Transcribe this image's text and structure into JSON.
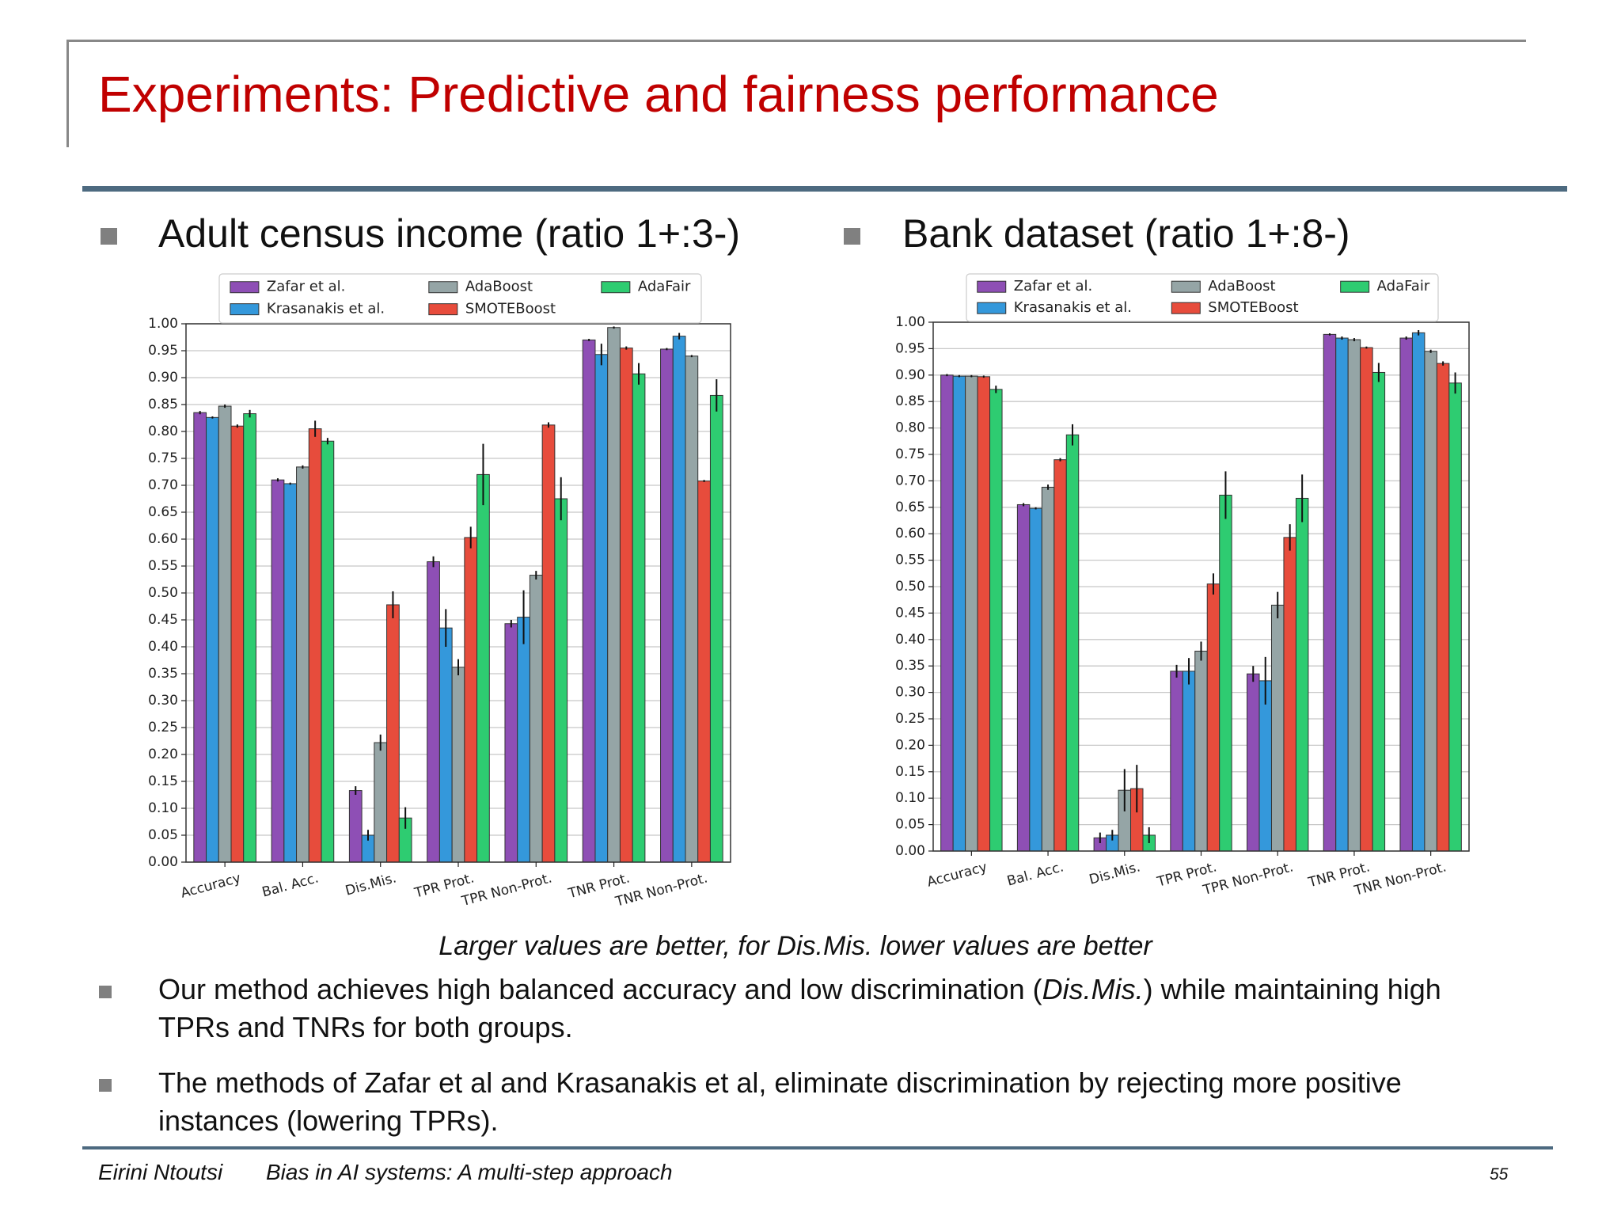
{
  "title": "Experiments: Predictive and fairness performance",
  "chart_data": [
    {
      "type": "bar",
      "title": "Adult census income (ratio 1+:3-)",
      "categories": [
        "Accuracy",
        "Bal. Acc.",
        "Dis.Mis.",
        "TPR Prot.",
        "TPR Non-Prot.",
        "TNR Prot.",
        "TNR Non-Prot."
      ],
      "series": [
        {
          "name": "Zafar et al.",
          "color": "#8e4fb5",
          "values": [
            0.835,
            0.71,
            0.133,
            0.558,
            0.443,
            0.97,
            0.953
          ],
          "errors": [
            0.003,
            0.003,
            0.008,
            0.01,
            0.007,
            0.002,
            0.002
          ]
        },
        {
          "name": "Krasanakis et al.",
          "color": "#3498db",
          "values": [
            0.826,
            0.703,
            0.05,
            0.435,
            0.455,
            0.943,
            0.977
          ],
          "errors": [
            0.002,
            0.002,
            0.01,
            0.035,
            0.05,
            0.02,
            0.006
          ]
        },
        {
          "name": "AdaBoost",
          "color": "#95a5a6",
          "values": [
            0.847,
            0.734,
            0.222,
            0.362,
            0.533,
            0.993,
            0.94
          ],
          "errors": [
            0.003,
            0.003,
            0.015,
            0.015,
            0.008,
            0.002,
            0.002
          ]
        },
        {
          "name": "SMOTEBoost",
          "color": "#e74c3c",
          "values": [
            0.81,
            0.805,
            0.478,
            0.603,
            0.812,
            0.955,
            0.708
          ],
          "errors": [
            0.003,
            0.015,
            0.025,
            0.02,
            0.005,
            0.003,
            0.002
          ]
        },
        {
          "name": "AdaFair",
          "color": "#2ecc71",
          "values": [
            0.833,
            0.782,
            0.082,
            0.72,
            0.675,
            0.907,
            0.867
          ],
          "errors": [
            0.007,
            0.006,
            0.02,
            0.057,
            0.04,
            0.02,
            0.03
          ]
        }
      ],
      "ylim": [
        0,
        1
      ],
      "yticks": [
        {
          "value": 0,
          "label": "0.00"
        },
        {
          "value": 0.05,
          "label": "0.05"
        },
        {
          "value": 0.1,
          "label": "0.10"
        },
        {
          "value": 0.15,
          "label": "0.15"
        },
        {
          "value": 0.2,
          "label": "0.20"
        },
        {
          "value": 0.25,
          "label": "0.25"
        },
        {
          "value": 0.3,
          "label": "0.30"
        },
        {
          "value": 0.35,
          "label": "0.35"
        },
        {
          "value": 0.4,
          "label": "0.40"
        },
        {
          "value": 0.45,
          "label": "0.45"
        },
        {
          "value": 0.5,
          "label": "0.50"
        },
        {
          "value": 0.55,
          "label": "0.55"
        },
        {
          "value": 0.6,
          "label": "0.60"
        },
        {
          "value": 0.65,
          "label": "0.65"
        },
        {
          "value": 0.7,
          "label": "0.70"
        },
        {
          "value": 0.75,
          "label": "0.75"
        },
        {
          "value": 0.8,
          "label": "0.80"
        },
        {
          "value": 0.85,
          "label": "0.85"
        },
        {
          "value": 0.9,
          "label": "0.90"
        },
        {
          "value": 0.95,
          "label": "0.95"
        },
        {
          "value": 1,
          "label": "1.00"
        }
      ],
      "grid": true,
      "legend": "top"
    },
    {
      "type": "bar",
      "title": "Bank dataset (ratio 1+:8-)",
      "categories": [
        "Accuracy",
        "Bal. Acc.",
        "Dis.Mis.",
        "TPR Prot.",
        "TPR Non-Prot.",
        "TNR Prot.",
        "TNR Non-Prot."
      ],
      "series": [
        {
          "name": "Zafar et al.",
          "color": "#8e4fb5",
          "values": [
            0.9,
            0.655,
            0.025,
            0.34,
            0.335,
            0.977,
            0.97
          ],
          "errors": [
            0.002,
            0.003,
            0.01,
            0.012,
            0.015,
            0.002,
            0.003
          ]
        },
        {
          "name": "Krasanakis et al.",
          "color": "#3498db",
          "values": [
            0.898,
            0.648,
            0.03,
            0.34,
            0.322,
            0.97,
            0.98
          ],
          "errors": [
            0.002,
            0.002,
            0.01,
            0.025,
            0.045,
            0.003,
            0.005
          ]
        },
        {
          "name": "AdaBoost",
          "color": "#95a5a6",
          "values": [
            0.898,
            0.688,
            0.115,
            0.378,
            0.465,
            0.967,
            0.945
          ],
          "errors": [
            0.002,
            0.005,
            0.04,
            0.018,
            0.025,
            0.003,
            0.003
          ]
        },
        {
          "name": "SMOTEBoost",
          "color": "#e74c3c",
          "values": [
            0.897,
            0.74,
            0.118,
            0.505,
            0.593,
            0.952,
            0.922
          ],
          "errors": [
            0.002,
            0.003,
            0.045,
            0.02,
            0.025,
            0.002,
            0.004
          ]
        },
        {
          "name": "AdaFair",
          "color": "#2ecc71",
          "values": [
            0.873,
            0.787,
            0.03,
            0.673,
            0.667,
            0.905,
            0.885
          ],
          "errors": [
            0.007,
            0.02,
            0.015,
            0.045,
            0.045,
            0.018,
            0.02
          ]
        }
      ],
      "ylim": [
        0,
        1
      ],
      "yticks": [
        {
          "value": 0,
          "label": "0.00"
        },
        {
          "value": 0.05,
          "label": "0.05"
        },
        {
          "value": 0.1,
          "label": "0.10"
        },
        {
          "value": 0.15,
          "label": "0.15"
        },
        {
          "value": 0.2,
          "label": "0.20"
        },
        {
          "value": 0.25,
          "label": "0.25"
        },
        {
          "value": 0.3,
          "label": "0.30"
        },
        {
          "value": 0.35,
          "label": "0.35"
        },
        {
          "value": 0.4,
          "label": "0.40"
        },
        {
          "value": 0.45,
          "label": "0.45"
        },
        {
          "value": 0.5,
          "label": "0.50"
        },
        {
          "value": 0.55,
          "label": "0.55"
        },
        {
          "value": 0.6,
          "label": "0.60"
        },
        {
          "value": 0.65,
          "label": "0.65"
        },
        {
          "value": 0.7,
          "label": "0.70"
        },
        {
          "value": 0.75,
          "label": "0.75"
        },
        {
          "value": 0.8,
          "label": "0.80"
        },
        {
          "value": 0.85,
          "label": "0.85"
        },
        {
          "value": 0.9,
          "label": "0.90"
        },
        {
          "value": 0.95,
          "label": "0.95"
        },
        {
          "value": 1,
          "label": "1.00"
        }
      ],
      "grid": true,
      "legend": "top"
    }
  ],
  "caption": "Larger values are better, for Dis.Mis. lower values are better",
  "bullets": [
    [
      "Our method  achieves high balanced accuracy and low discrimination (",
      "Dis.Mis.",
      ") while maintaining high TPRs and  TNRs for both groups."
    ],
    [
      "The methods of Zafar et al and Krasanakis et al, eliminate discrimination by rejecting more positive instances (lowering TPRs)."
    ]
  ],
  "footer": {
    "author": "Eirini Ntoutsi",
    "talk": "Bias in AI systems: A multi-step approach",
    "page": "55"
  }
}
